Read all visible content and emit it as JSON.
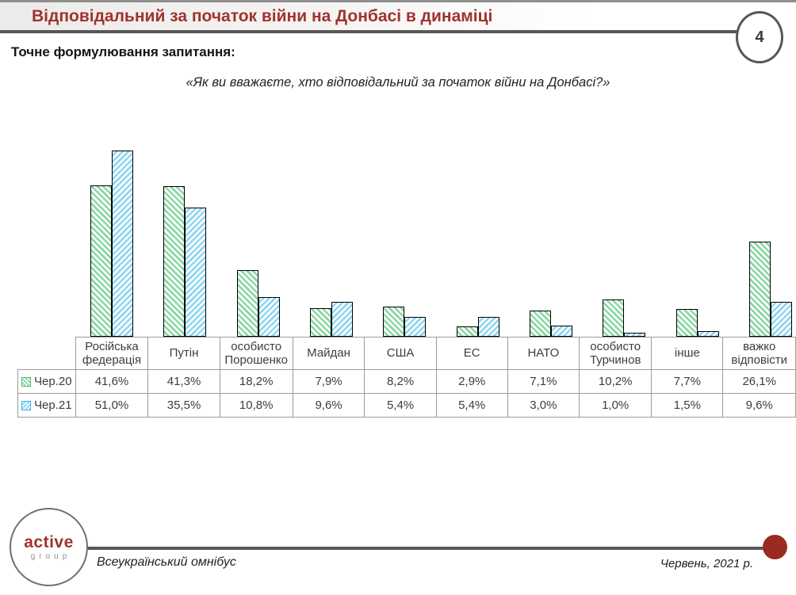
{
  "slide": {
    "title": "Відповідальний за початок війни на Донбасі в динаміці",
    "page_number": "4",
    "question_label": "Точне формулювання запитання:",
    "question_quote": "«Як ви вважаєте, хто відповідальний за початок війни на Донбасі?»"
  },
  "chart_data": {
    "type": "bar",
    "categories": [
      "Російська федерація",
      "Путін",
      "особисто Порошенко",
      "Майдан",
      "США",
      "ЕС",
      "НАТО",
      "особисто Турчинов",
      "інше",
      "важко відповісти"
    ],
    "series": [
      {
        "name": "Чер.20",
        "color": "#4bbb71",
        "hatch": "backslash",
        "values": [
          41.6,
          41.3,
          18.2,
          7.9,
          8.2,
          2.9,
          7.1,
          10.2,
          7.7,
          26.1
        ]
      },
      {
        "name": "Чер.21",
        "color": "#3ab3e2",
        "hatch": "slash",
        "values": [
          51.0,
          35.5,
          10.8,
          9.6,
          5.4,
          5.4,
          3.0,
          1.0,
          1.5,
          9.6
        ]
      }
    ],
    "unit": "%",
    "decimal_separator": ",",
    "ylim": [
      0,
      55
    ],
    "gridlines": false,
    "legend_position": "table-rows-left",
    "table_displays_values": true
  },
  "footer": {
    "logo_primary": "active",
    "logo_secondary": "group",
    "left_text": "Всеукраїнський омнібус",
    "right_text": "Червень, 2021 р."
  },
  "colors": {
    "title_red": "#9e332e",
    "series_green": "#4bbb71",
    "series_blue": "#3ab3e2",
    "rule_gray": "#575757",
    "footer_dot_red": "#992b21",
    "table_border_gray": "#9b9b9b"
  }
}
